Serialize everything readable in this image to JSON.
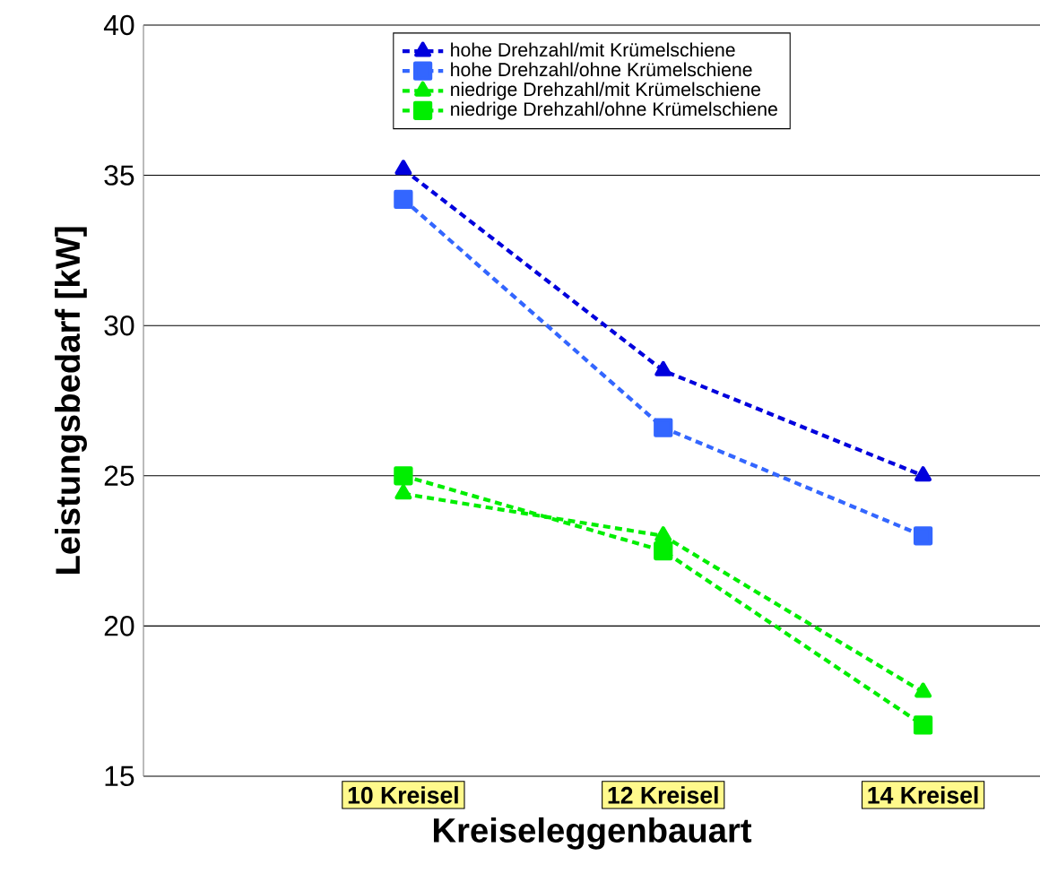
{
  "chart_data": {
    "type": "line",
    "xlabel": "Kreiseleggenbauart",
    "ylabel": "Leistungsbedarf [kW]",
    "categories": [
      "10 Kreisel",
      "12 Kreisel",
      "14 Kreisel"
    ],
    "series": [
      {
        "name": "hohe Drehzahl/mit Krümelschiene",
        "color": "#0000dd",
        "marker": "triangle",
        "values": [
          35.2,
          28.5,
          25.0
        ]
      },
      {
        "name": "hohe Drehzahl/ohne Krümelschiene",
        "color": "#3366ff",
        "marker": "square",
        "values": [
          34.2,
          26.6,
          23.0
        ]
      },
      {
        "name": "niedrige Drehzahl/mit Krümelschiene",
        "color": "#00ee00",
        "marker": "triangle",
        "values": [
          24.4,
          23.0,
          17.8
        ]
      },
      {
        "name": "niedrige Drehzahl/ohne Krümelschiene",
        "color": "#00ee00",
        "marker": "square",
        "values": [
          25.0,
          22.5,
          16.7
        ]
      }
    ],
    "ylim": [
      15,
      40
    ],
    "yticks": [
      15,
      20,
      25,
      30,
      35,
      40
    ],
    "grid": "y",
    "legend": "top",
    "line_style": "dashed"
  }
}
